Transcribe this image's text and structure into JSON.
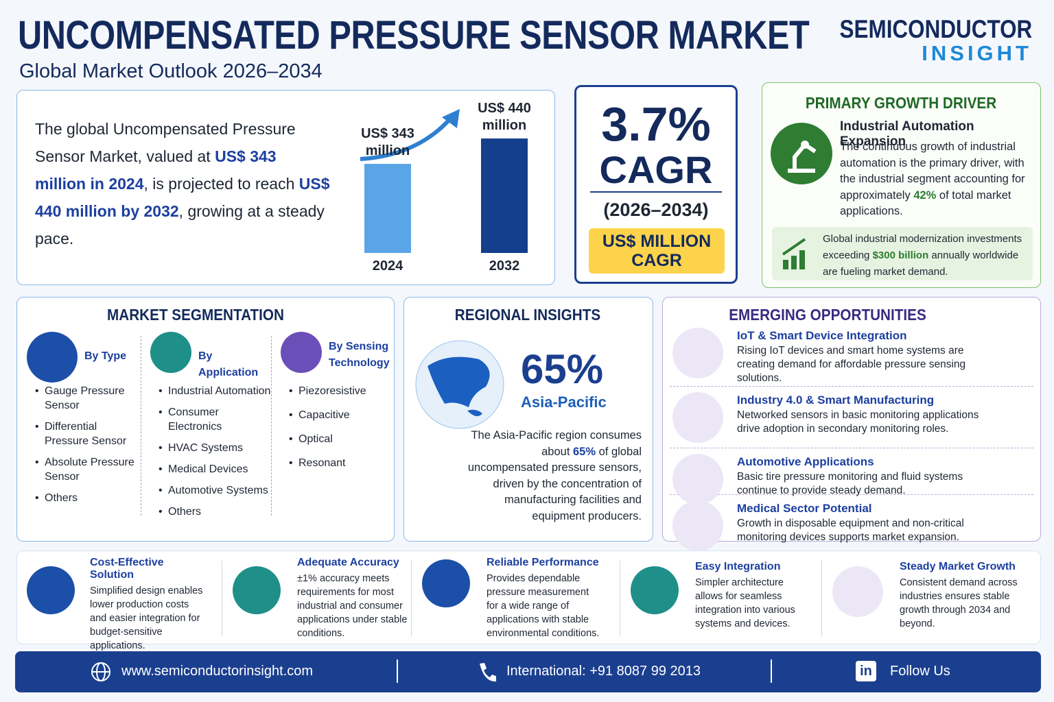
{
  "header": {
    "title": "UNCOMPENSATED PRESSURE SENSOR MARKET",
    "subtitle": "Global Market Outlook 2026–2034",
    "brand": [
      "SEMICONDUCTOR",
      "INSIGHT"
    ]
  },
  "summary": {
    "parts": [
      "The global Uncompensated Pressure Sensor Market, valued at ",
      "US$ 343 million in 2024",
      ", is projected to reach ",
      "US$ 440 million by 2032",
      ", growing at a steady pace."
    ]
  },
  "chart": {
    "categories": [
      "2024",
      "2032"
    ],
    "values": [
      343,
      440
    ],
    "value_labels": [
      "US$ 343 million",
      "US$ 440 million"
    ],
    "colors": [
      "#5aa5e6",
      "#143f8c"
    ]
  },
  "cagr": {
    "value": "3.7%",
    "label": "CAGR",
    "period": "(2026–2034)",
    "unit": "US$ MILLION CAGR"
  },
  "driver": {
    "heading": "PRIMARY GROWTH DRIVER",
    "title": "Industrial Automation Expansion",
    "parts": [
      "The continuous growth of industrial automation is the primary driver, with the industrial segment accounting for approximately ",
      "42%",
      " of total market applications."
    ],
    "note": [
      "Global industrial modernization investments exceeding ",
      "$300 billion",
      " annually worldwide are fueling market demand."
    ]
  },
  "segmentation": {
    "heading": "MARKET SEGMENTATION",
    "groups": [
      {
        "title": "By Type",
        "items": [
          "Gauge Pressure Sensor",
          "Differential Pressure Sensor",
          "Absolute Pressure Sensor",
          "Others"
        ]
      },
      {
        "title": "By Application",
        "items": [
          "Industrial Automation",
          "Consumer Electronics",
          "HVAC Systems",
          "Medical Devices",
          "Automotive Systems",
          "Others"
        ]
      },
      {
        "title": "By Sensing Technology",
        "items": [
          "Piezoresistive",
          "Capacitive",
          "Optical",
          "Resonant"
        ]
      }
    ]
  },
  "regional": {
    "heading": "REGIONAL INSIGHTS",
    "share": "65%",
    "region": "Asia-Pacific",
    "parts": [
      "The Asia-Pacific region consumes about ",
      "65%",
      " of global uncompensated pressure sensors, driven by the concentration of manufacturing facilities and equipment producers."
    ]
  },
  "opportunities": {
    "heading": "EMERGING OPPORTUNITIES",
    "items": [
      {
        "title": "IoT & Smart Device Integration",
        "text": "Rising IoT devices and smart home systems are creating demand for affordable pressure sensing solutions."
      },
      {
        "title": "Industry 4.0 & Smart Manufacturing",
        "text": "Networked sensors in basic monitoring applications drive adoption in secondary monitoring roles."
      },
      {
        "title": "Automotive Applications",
        "text": "Basic tire pressure monitoring and fluid systems continue to provide steady demand."
      },
      {
        "title": "Medical Sector Potential",
        "text": "Growth in disposable equipment and non-critical monitoring devices supports market expansion."
      }
    ]
  },
  "features": [
    {
      "title": "Cost-Effective Solution",
      "text": "Simplified design enables lower production costs and easier integration for budget-sensitive applications."
    },
    {
      "title": "Adequate Accuracy",
      "text": "±1% accuracy meets requirements for most industrial and consumer applications under stable conditions."
    },
    {
      "title": "Reliable Performance",
      "text": "Provides dependable pressure measurement for a wide range of applications with stable environmental conditions."
    },
    {
      "title": "Easy Integration",
      "text": "Simpler architecture allows for seamless integration into various systems and devices."
    },
    {
      "title": "Steady Market Growth",
      "text": "Consistent demand across industries ensures stable growth through 2034 and beyond."
    }
  ],
  "footer": {
    "website": "www.semiconductorinsight.com",
    "phone_label": "International:",
    "phone": "+91 8087 99 2013",
    "follow": "Follow Us"
  }
}
